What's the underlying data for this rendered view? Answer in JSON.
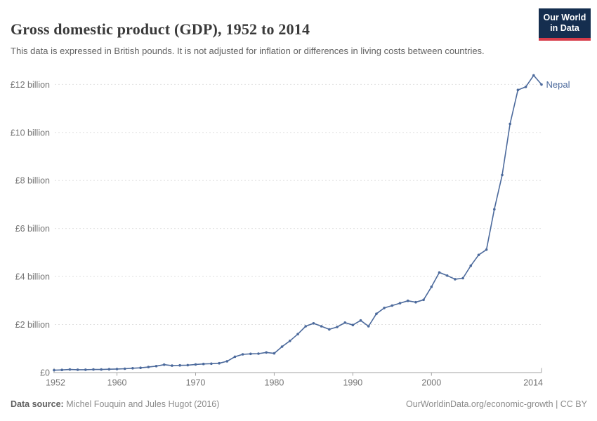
{
  "header": {
    "title": "Gross domestic product (GDP), 1952 to 2014",
    "subtitle": "This data is expressed in British pounds. It is not adjusted for inflation or differences in living costs between countries."
  },
  "logo": {
    "line1": "Our World",
    "line2": "in Data",
    "bg_color": "#152e4f",
    "accent_color": "#d73c4a"
  },
  "colors": {
    "line": "#4c6a9c",
    "gridline": "#e0e0e0",
    "axis": "#a3a3a3",
    "tick_label": "#757575"
  },
  "chart_data": {
    "type": "line",
    "title": "Gross domestic product (GDP), 1952 to 2014",
    "entity_label": "Nepal",
    "unit": "British pounds (billions)",
    "xlim": [
      1952,
      2014
    ],
    "ylim": [
      0,
      12
    ],
    "grid": "horizontal dashed",
    "legend": "end-of-line entity label",
    "x_ticks": [
      1952,
      1960,
      1970,
      1980,
      1990,
      2000,
      2014
    ],
    "y_ticks": {
      "values": [
        0,
        2,
        4,
        6,
        8,
        10,
        12
      ],
      "labels": [
        "£0",
        "£2 billion",
        "£4 billion",
        "£6 billion",
        "£8 billion",
        "£10 billion",
        "£12 billion"
      ]
    },
    "x": [
      1952,
      1953,
      1954,
      1955,
      1956,
      1957,
      1958,
      1959,
      1960,
      1961,
      1962,
      1963,
      1964,
      1965,
      1966,
      1967,
      1968,
      1969,
      1970,
      1971,
      1972,
      1973,
      1974,
      1975,
      1976,
      1977,
      1978,
      1979,
      1980,
      1981,
      1982,
      1983,
      1984,
      1985,
      1986,
      1987,
      1988,
      1989,
      1990,
      1991,
      1992,
      1993,
      1994,
      1995,
      1996,
      1997,
      1998,
      1999,
      2000,
      2001,
      2002,
      2003,
      2004,
      2005,
      2006,
      2007,
      2008,
      2009,
      2010,
      2011,
      2012,
      2013,
      2014
    ],
    "series": [
      {
        "name": "Nepal",
        "values": [
          0.1,
          0.11,
          0.13,
          0.12,
          0.12,
          0.13,
          0.13,
          0.14,
          0.15,
          0.16,
          0.18,
          0.2,
          0.23,
          0.27,
          0.33,
          0.29,
          0.3,
          0.31,
          0.34,
          0.36,
          0.37,
          0.39,
          0.47,
          0.66,
          0.76,
          0.78,
          0.79,
          0.84,
          0.8,
          1.08,
          1.32,
          1.6,
          1.93,
          2.05,
          1.93,
          1.8,
          1.9,
          2.08,
          1.98,
          2.17,
          1.93,
          2.45,
          2.69,
          2.79,
          2.89,
          2.99,
          2.93,
          3.03,
          3.57,
          4.17,
          4.04,
          3.89,
          3.93,
          4.45,
          4.9,
          5.12,
          6.8,
          8.23,
          10.36,
          11.77,
          11.9,
          12.38,
          12.0
        ]
      }
    ]
  },
  "footer": {
    "source_label": "Data source:",
    "source_text": "Michel Fouquin and Jules Hugot (2016)",
    "credit": "OurWorldinData.org/economic-growth | CC BY"
  }
}
